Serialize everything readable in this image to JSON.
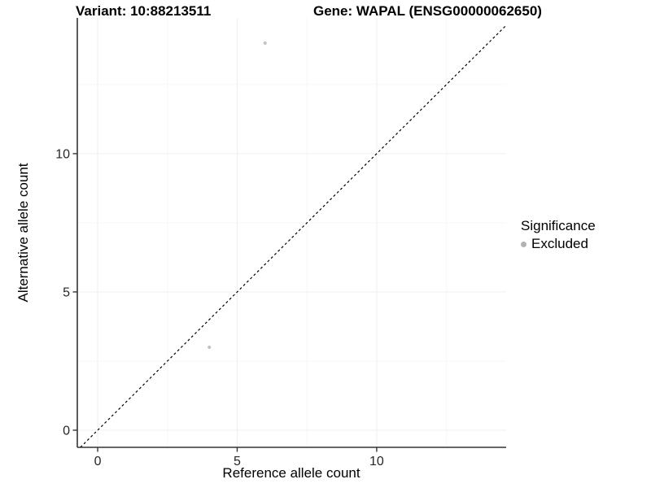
{
  "chart_data": {
    "type": "scatter",
    "title_left": "Variant: 10:88213511",
    "title_right": "Gene: WAPAL (ENSG00000062650)",
    "xlabel": "Reference allele count",
    "ylabel": "Alternative allele count",
    "xlim": [
      -0.73,
      14.64
    ],
    "ylim": [
      -0.62,
      14.91
    ],
    "x_ticks": [
      0,
      5,
      10
    ],
    "y_ticks": [
      0,
      5,
      10
    ],
    "x_minor_ticks": [
      2.5,
      7.5,
      12.5
    ],
    "y_minor_ticks": [
      2.5,
      7.5,
      12.5
    ],
    "grid": true,
    "series": [
      {
        "name": "Excluded",
        "color": "#c3c3c3",
        "points": [
          {
            "x": 4,
            "y": 3
          },
          {
            "x": 6,
            "y": 14
          }
        ]
      }
    ],
    "reference_line": {
      "type": "identity",
      "style": "dashed",
      "color": "#000000"
    },
    "legend": {
      "title": "Significance",
      "position": "right"
    },
    "colors": {
      "major_grid": "#efefef",
      "minor_grid": "#f7f7f7",
      "axis_line": "#333333",
      "tick_text": "#262626",
      "legend_dot": "#b2b2b2"
    }
  }
}
